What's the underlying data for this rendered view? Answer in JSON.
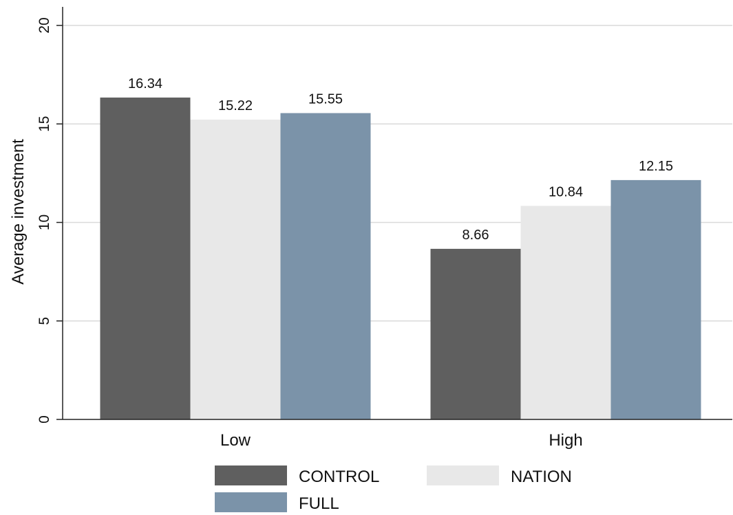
{
  "chart_data": {
    "type": "bar",
    "title": "",
    "xlabel": "",
    "ylabel": "Average investment",
    "categories": [
      "Low",
      "High"
    ],
    "ylim": [
      0,
      20
    ],
    "yticks": [
      0,
      5,
      10,
      15,
      20
    ],
    "grid": true,
    "legend_position": "bottom",
    "series": [
      {
        "name": "CONTROL",
        "color": "#5f5f5f",
        "values": [
          16.34,
          8.66
        ],
        "labels": [
          "16.34",
          "8.66"
        ]
      },
      {
        "name": "NATION",
        "color": "#e8e8e8",
        "values": [
          15.22,
          10.84
        ],
        "labels": [
          "15.22",
          "10.84"
        ]
      },
      {
        "name": "FULL",
        "color": "#7b93a9",
        "values": [
          15.55,
          12.15
        ],
        "labels": [
          "15.55",
          "12.15"
        ]
      }
    ]
  }
}
